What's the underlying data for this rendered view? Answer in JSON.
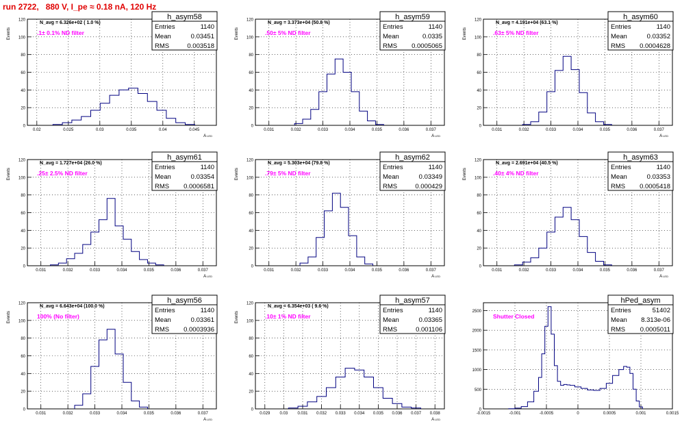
{
  "page": {
    "title": "run 2722,   880 V, I_pe ≈ 0.18 nA, 120 Hz"
  },
  "chart_data": [
    {
      "type": "bar",
      "name": "h_asym58",
      "navg": "N_avg = 6.326e+02 ( 1.0 %)",
      "filter": ".1± 0.1% ND filter",
      "stats": {
        "entries": "1140",
        "mean": "0.03451",
        "rms": "0.003518"
      },
      "xlabel": "A_LED",
      "ylabel": "Events",
      "xlim": [
        0.0185,
        0.0485
      ],
      "ylim": [
        0,
        120
      ],
      "xticks": [
        0.02,
        0.025,
        0.03,
        0.035,
        0.04,
        0.045
      ],
      "xticklabels": [
        "0.02",
        "0.025",
        "0.03",
        "0.035",
        "0.04",
        "0.045"
      ],
      "yticks": [
        0,
        20,
        40,
        60,
        80,
        100,
        120
      ],
      "bin_centers": [
        0.0233,
        0.0248,
        0.0263,
        0.0278,
        0.0293,
        0.0308,
        0.0323,
        0.0338,
        0.0353,
        0.0368,
        0.0383,
        0.0398,
        0.0413,
        0.0428,
        0.0443
      ],
      "counts": [
        1,
        3,
        6,
        10,
        17,
        25,
        34,
        40,
        42,
        36,
        27,
        17,
        8,
        3,
        1
      ]
    },
    {
      "type": "bar",
      "name": "h_asym59",
      "navg": "N_avg = 3.373e+04 (50.8 %)",
      "filter": ".50± 5% ND filter",
      "stats": {
        "entries": "1140",
        "mean": "0.0335",
        "rms": "0.0005065"
      },
      "xlabel": "A_LED",
      "ylabel": "Events",
      "xlim": [
        0.0305,
        0.0375
      ],
      "ylim": [
        0,
        120
      ],
      "xticks": [
        0.031,
        0.032,
        0.033,
        0.034,
        0.035,
        0.036,
        0.037
      ],
      "xticklabels": [
        "0.031",
        "0.032",
        "0.033",
        "0.034",
        "0.035",
        "0.036",
        "0.037"
      ],
      "yticks": [
        0,
        20,
        40,
        60,
        80,
        100,
        120
      ],
      "bin_centers": [
        0.0321,
        0.0324,
        0.0327,
        0.033,
        0.0333,
        0.0336,
        0.0339,
        0.0342,
        0.0345,
        0.0348,
        0.0351
      ],
      "counts": [
        2,
        7,
        18,
        38,
        58,
        75,
        60,
        38,
        16,
        5,
        1
      ]
    },
    {
      "type": "bar",
      "name": "h_asym60",
      "navg": "N_avg = 4.191e+04 (63.1 %)",
      "filter": ".63± 5% ND filter",
      "stats": {
        "entries": "1140",
        "mean": "0.03352",
        "rms": "0.0004628"
      },
      "xlabel": "A_LED",
      "ylabel": "Events",
      "xlim": [
        0.0305,
        0.0375
      ],
      "ylim": [
        0,
        120
      ],
      "xticks": [
        0.031,
        0.032,
        0.033,
        0.034,
        0.035,
        0.036,
        0.037
      ],
      "xticklabels": [
        "0.031",
        "0.032",
        "0.033",
        "0.034",
        "0.035",
        "0.036",
        "0.037"
      ],
      "yticks": [
        0,
        20,
        40,
        60,
        80,
        100,
        120
      ],
      "bin_centers": [
        0.0321,
        0.0324,
        0.0327,
        0.033,
        0.0333,
        0.0336,
        0.0339,
        0.0342,
        0.0345,
        0.0348,
        0.0351
      ],
      "counts": [
        1,
        4,
        15,
        38,
        62,
        78,
        63,
        37,
        14,
        4,
        1
      ]
    },
    {
      "type": "bar",
      "name": "h_asym61",
      "navg": "N_avg = 1.727e+04 (26.0 %)",
      "filter": ".25± 2.5% ND filter",
      "stats": {
        "entries": "1140",
        "mean": "0.03354",
        "rms": "0.0006581"
      },
      "xlabel": "A_LED",
      "ylabel": "Events",
      "xlim": [
        0.0305,
        0.0375
      ],
      "ylim": [
        0,
        120
      ],
      "xticks": [
        0.031,
        0.032,
        0.033,
        0.034,
        0.035,
        0.036,
        0.037
      ],
      "xticklabels": [
        "0.031",
        "0.032",
        "0.033",
        "0.034",
        "0.035",
        "0.036",
        "0.037"
      ],
      "yticks": [
        0,
        20,
        40,
        60,
        80,
        100,
        120
      ],
      "bin_centers": [
        0.0315,
        0.0318,
        0.0321,
        0.0324,
        0.0327,
        0.033,
        0.0333,
        0.0336,
        0.0339,
        0.0342,
        0.0345,
        0.0348,
        0.0351,
        0.0354
      ],
      "counts": [
        1,
        3,
        8,
        14,
        24,
        38,
        52,
        76,
        45,
        30,
        16,
        7,
        3,
        1
      ]
    },
    {
      "type": "bar",
      "name": "h_asym62",
      "navg": "N_avg = 5.303e+04 (79.8 %)",
      "filter": ".79± 5% ND filter",
      "stats": {
        "entries": "1140",
        "mean": "0.03349",
        "rms": "0.000429"
      },
      "xlabel": "A_LED",
      "ylabel": "Events",
      "xlim": [
        0.0305,
        0.0375
      ],
      "ylim": [
        0,
        120
      ],
      "xticks": [
        0.031,
        0.032,
        0.033,
        0.034,
        0.035,
        0.036,
        0.037
      ],
      "xticklabels": [
        "0.031",
        "0.032",
        "0.033",
        "0.034",
        "0.035",
        "0.036",
        "0.037"
      ],
      "yticks": [
        0,
        20,
        40,
        60,
        80,
        100,
        120
      ],
      "bin_centers": [
        0.0323,
        0.0326,
        0.0329,
        0.0332,
        0.0335,
        0.0338,
        0.0341,
        0.0344,
        0.0347
      ],
      "counts": [
        3,
        10,
        32,
        62,
        82,
        66,
        34,
        10,
        2
      ]
    },
    {
      "type": "bar",
      "name": "h_asym63",
      "navg": "N_avg = 2.691e+04 (40.5 %)",
      "filter": ".40± 4% ND filter",
      "stats": {
        "entries": "1140",
        "mean": "0.03353",
        "rms": "0.0005418"
      },
      "xlabel": "A_LED",
      "ylabel": "Events",
      "xlim": [
        0.0305,
        0.0375
      ],
      "ylim": [
        0,
        120
      ],
      "xticks": [
        0.031,
        0.032,
        0.033,
        0.034,
        0.035,
        0.036,
        0.037
      ],
      "xticklabels": [
        "0.031",
        "0.032",
        "0.033",
        "0.034",
        "0.035",
        "0.036",
        "0.037"
      ],
      "yticks": [
        0,
        20,
        40,
        60,
        80,
        100,
        120
      ],
      "bin_centers": [
        0.0318,
        0.0321,
        0.0324,
        0.0327,
        0.033,
        0.0333,
        0.0336,
        0.0339,
        0.0342,
        0.0345,
        0.0348,
        0.0351
      ],
      "counts": [
        1,
        4,
        9,
        20,
        38,
        55,
        66,
        52,
        33,
        15,
        5,
        1
      ]
    },
    {
      "type": "bar",
      "name": "h_asym56",
      "navg": "N_avg = 6.643e+04 (100.0 %)",
      "filter": "100% (No filter)",
      "stats": {
        "entries": "1140",
        "mean": "0.03361",
        "rms": "0.0003936"
      },
      "xlabel": "A_LED",
      "ylabel": "Events",
      "xlim": [
        0.0305,
        0.0375
      ],
      "ylim": [
        0,
        120
      ],
      "xticks": [
        0.031,
        0.032,
        0.033,
        0.034,
        0.035,
        0.036,
        0.037
      ],
      "xticklabels": [
        "0.031",
        "0.032",
        "0.033",
        "0.034",
        "0.035",
        "0.036",
        "0.037"
      ],
      "yticks": [
        0,
        20,
        40,
        60,
        80,
        100,
        120
      ],
      "bin_centers": [
        0.0324,
        0.0327,
        0.033,
        0.0333,
        0.0336,
        0.0339,
        0.0342,
        0.0345,
        0.0348
      ],
      "counts": [
        4,
        17,
        48,
        78,
        90,
        62,
        30,
        9,
        2
      ]
    },
    {
      "type": "bar",
      "name": "h_asym57",
      "navg": "N_avg = 6.354e+03 ( 9.6 %)",
      "filter": ".10± 1% ND filter",
      "stats": {
        "entries": "1140",
        "mean": "0.03365",
        "rms": "0.001106"
      },
      "xlabel": "A_LED",
      "ylabel": "Events",
      "xlim": [
        0.0285,
        0.0385
      ],
      "ylim": [
        0,
        120
      ],
      "xticks": [
        0.029,
        0.03,
        0.031,
        0.032,
        0.033,
        0.034,
        0.035,
        0.036,
        0.037,
        0.038
      ],
      "xticklabels": [
        "0.029",
        "0.03",
        "0.031",
        "0.032",
        "0.033",
        "0.034",
        "0.035",
        "0.036",
        "0.037",
        "0.038"
      ],
      "yticks": [
        0,
        20,
        40,
        60,
        80,
        100,
        120
      ],
      "bin_centers": [
        0.0305,
        0.031,
        0.0315,
        0.032,
        0.0325,
        0.033,
        0.0335,
        0.034,
        0.0345,
        0.035,
        0.0355,
        0.036,
        0.0365,
        0.037
      ],
      "counts": [
        1,
        3,
        8,
        14,
        24,
        36,
        46,
        44,
        36,
        24,
        12,
        6,
        2,
        1
      ]
    },
    {
      "type": "bar",
      "name": "hPed_asym",
      "navg": "",
      "filter": "Shutter Closed",
      "stats": {
        "entries": "51402",
        "mean": "8.313e-06",
        "rms": "0.0005011"
      },
      "xlabel": "",
      "ylabel": "",
      "xlim": [
        -0.0015,
        0.0015
      ],
      "ylim": [
        0,
        2700
      ],
      "xticks": [
        -0.0015,
        -0.001,
        -0.0005,
        0,
        0.0005,
        0.001,
        0.0015
      ],
      "xticklabels": [
        "-0.0015",
        "-0.001",
        "-0.0005",
        "0",
        "0.0005",
        "0.001",
        "0.0015"
      ],
      "yticks": [
        0,
        500,
        1000,
        1500,
        2000,
        2500
      ],
      "bin_centers": [
        -0.00105,
        -0.00095,
        -0.00085,
        -0.00075,
        -0.00065,
        -0.0006,
        -0.00055,
        -0.0005,
        -0.00045,
        -0.0004,
        -0.00035,
        -0.0003,
        -0.00025,
        -0.0002,
        -0.00015,
        -0.0001,
        0,
        0.0001,
        0.0002,
        0.0003,
        0.0004,
        0.0005,
        0.0006,
        0.0007,
        0.00075,
        0.0008,
        0.00085,
        0.0009,
        0.00095,
        0.001
      ],
      "counts": [
        5,
        20,
        60,
        180,
        450,
        800,
        1400,
        2100,
        2600,
        1900,
        1100,
        700,
        600,
        620,
        610,
        600,
        560,
        520,
        480,
        470,
        520,
        650,
        850,
        1000,
        1080,
        1060,
        900,
        500,
        200,
        50
      ]
    }
  ]
}
